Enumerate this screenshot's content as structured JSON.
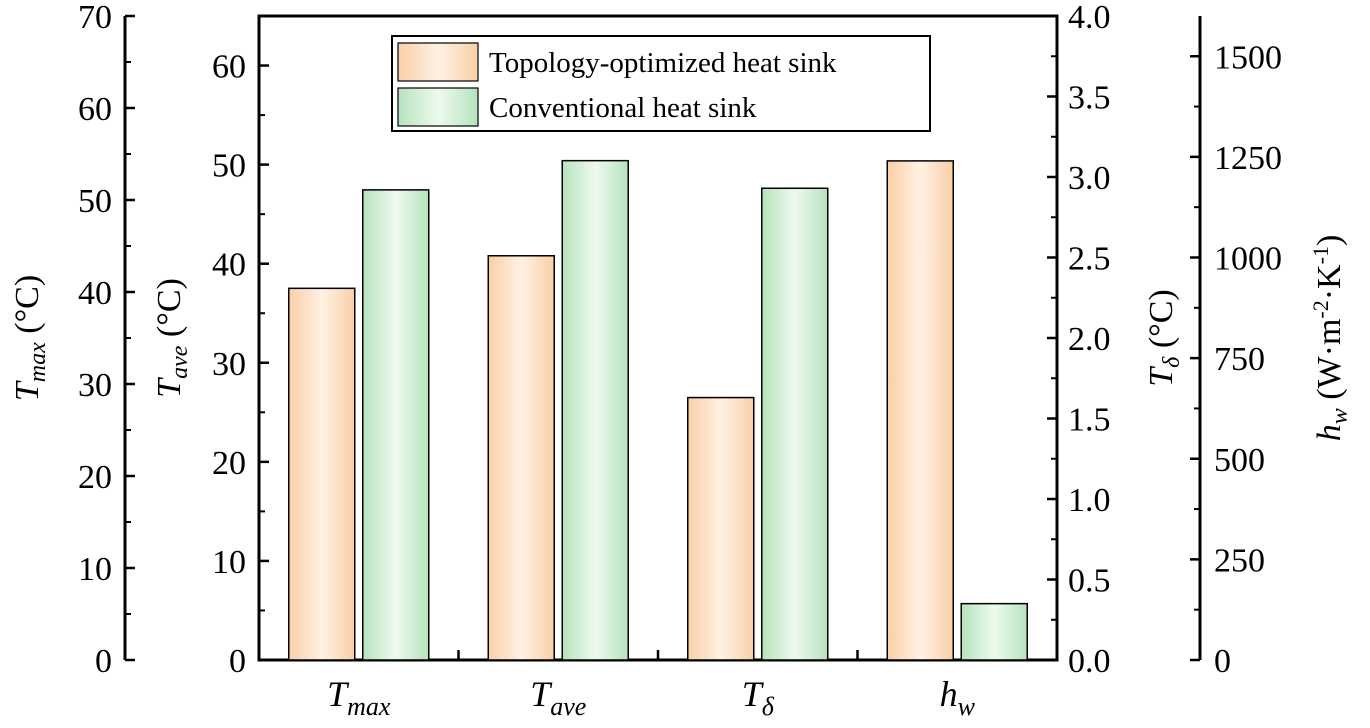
{
  "chart_data": {
    "type": "bar",
    "categories": [
      {
        "main": "T",
        "sub": "max"
      },
      {
        "main": "T",
        "sub": "ave"
      },
      {
        "main": "T",
        "sub": "δ"
      },
      {
        "main": "h",
        "sub": "w"
      }
    ],
    "series": [
      {
        "name": "Topology-optimized heat sink",
        "color_top": "#f9d5b0",
        "color_mid": "#fdeede",
        "stroke": "#000000",
        "values": [
          40.4,
          40.8,
          1.63,
          1240
        ]
      },
      {
        "name": "Conventional heat sink",
        "color_top": "#bfe6c4",
        "color_mid": "#e9f7ea",
        "stroke": "#000000",
        "values": [
          51.1,
          50.4,
          2.93,
          140
        ]
      }
    ],
    "axes": [
      {
        "id": "Tmax",
        "title_main": "T",
        "title_sub": "max",
        "title_unit": " (°C)",
        "ylim": [
          0,
          70
        ],
        "ticks": [
          "0",
          "10",
          "20",
          "30",
          "40",
          "50",
          "60",
          "70"
        ]
      },
      {
        "id": "Tave",
        "title_main": "T",
        "title_sub": "ave",
        "title_unit": " (°C)",
        "ylim": [
          0,
          65
        ],
        "ticks": [
          "0",
          "10",
          "20",
          "30",
          "40",
          "50",
          "60"
        ]
      },
      {
        "id": "Tdelta",
        "title_main": "T",
        "title_sub": "δ",
        "title_unit": " (°C)",
        "ylim": [
          0,
          4.0
        ],
        "ticks": [
          "0.0",
          "0.5",
          "1.0",
          "1.5",
          "2.0",
          "2.5",
          "3.0",
          "3.5",
          "4.0"
        ]
      },
      {
        "id": "hw",
        "title_main": "h",
        "title_sub": "w",
        "title_unit_pre": " (W·m",
        "sup1": "-2",
        "mid": "·K",
        "sup2": "-1",
        "title_unit_post": ")",
        "ylim": [
          0,
          1600
        ],
        "ticks": [
          "0",
          "250",
          "500",
          "750",
          "1000",
          "1250",
          "1500"
        ]
      }
    ],
    "legend": {
      "placement": "top-center"
    }
  }
}
